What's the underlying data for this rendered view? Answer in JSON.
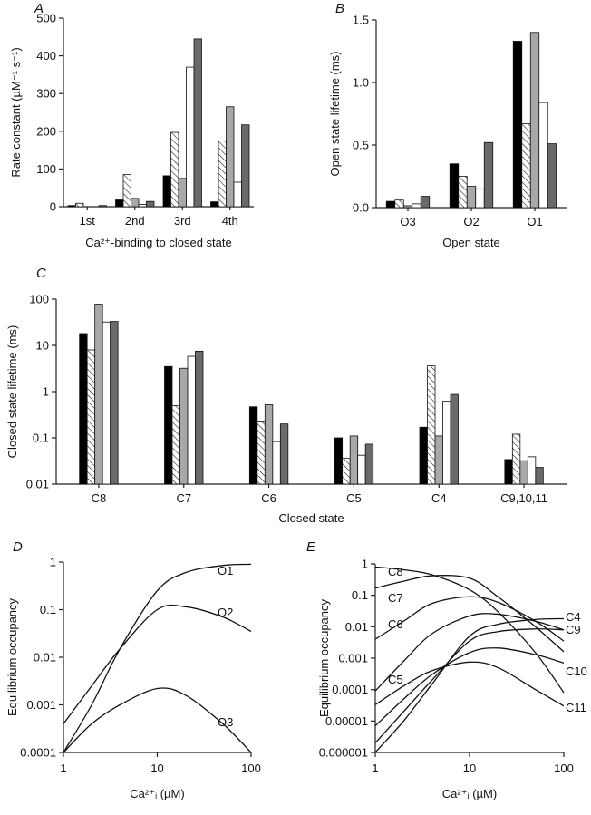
{
  "colors": {
    "series": [
      "#000000",
      "hatch",
      "#a8a8a8",
      "#ffffff",
      "#6a6a6a"
    ],
    "line": "#111111"
  },
  "chart_data": [
    {
      "panel": "A",
      "type": "bar",
      "ylabel": "Rate constant (µM⁻¹ s⁻¹)",
      "xlabel": "Ca²⁺-binding to closed state",
      "categories": [
        "1st",
        "2nd",
        "3rd",
        "4th"
      ],
      "yscale": "linear",
      "ylim": [
        0,
        500
      ],
      "yticks": [
        0,
        100,
        200,
        300,
        400,
        500
      ],
      "ytick_labels": [
        "0",
        "100",
        "200",
        "300",
        "400",
        "500"
      ],
      "series": [
        {
          "name": "series 1 (black)",
          "values": [
            3,
            18,
            82,
            13
          ]
        },
        {
          "name": "series 2 (hatched)",
          "values": [
            9,
            85,
            197,
            174
          ]
        },
        {
          "name": "series 3 (light grey)",
          "values": [
            0,
            22,
            75,
            265
          ]
        },
        {
          "name": "series 4 (white)",
          "values": [
            0,
            6,
            370,
            65
          ]
        },
        {
          "name": "series 5 (dark grey)",
          "values": [
            3,
            14,
            445,
            217
          ]
        }
      ]
    },
    {
      "panel": "B",
      "type": "bar",
      "ylabel": "Open state lifetime (ms)",
      "xlabel": "Open state",
      "categories": [
        "O3",
        "O2",
        "O1"
      ],
      "yscale": "linear",
      "ylim": [
        0,
        1.5
      ],
      "yticks": [
        0,
        0.5,
        1.0,
        1.5
      ],
      "ytick_labels": [
        "0.0",
        "0.5",
        "1.0",
        "1.5"
      ],
      "series": [
        {
          "name": "series 1 (black)",
          "values": [
            0.05,
            0.35,
            1.33
          ]
        },
        {
          "name": "series 2 (hatched)",
          "values": [
            0.06,
            0.25,
            0.67
          ]
        },
        {
          "name": "series 3 (light grey)",
          "values": [
            0.015,
            0.17,
            1.4
          ]
        },
        {
          "name": "series 4 (white)",
          "values": [
            0.03,
            0.15,
            0.84
          ]
        },
        {
          "name": "series 5 (dark grey)",
          "values": [
            0.09,
            0.52,
            0.51
          ]
        }
      ]
    },
    {
      "panel": "C",
      "type": "bar",
      "ylabel": "Closed state lifetime (ms)",
      "xlabel": "Closed state",
      "categories": [
        "C8",
        "C7",
        "C6",
        "C5",
        "C4",
        "C9,10,11"
      ],
      "yscale": "log",
      "ylim": [
        0.01,
        100
      ],
      "yticks": [
        0.01,
        0.1,
        1,
        10,
        100
      ],
      "ytick_labels": [
        "0.01",
        "0.1",
        "1",
        "10",
        "100"
      ],
      "series": [
        {
          "name": "series 1 (black)",
          "values": [
            18,
            3.5,
            0.47,
            0.1,
            0.17,
            0.034
          ]
        },
        {
          "name": "series 2 (hatched)",
          "values": [
            8,
            0.5,
            0.23,
            0.036,
            3.6,
            0.12
          ]
        },
        {
          "name": "series 3 (light grey)",
          "values": [
            78,
            3.2,
            0.52,
            0.11,
            0.11,
            0.032
          ]
        },
        {
          "name": "series 4 (white)",
          "values": [
            32,
            5.8,
            0.083,
            0.042,
            0.62,
            0.039
          ]
        },
        {
          "name": "series 5 (dark grey)",
          "values": [
            33,
            7.5,
            0.2,
            0.073,
            0.87,
            0.023
          ]
        }
      ]
    },
    {
      "panel": "D",
      "type": "line",
      "ylabel": "Equilibrium occupancy",
      "xlabel": "Ca²⁺ᵢ (µM)",
      "xscale": "log",
      "yscale": "log",
      "xlim": [
        1,
        100
      ],
      "ylim": [
        0.0001,
        1
      ],
      "xticks": [
        1,
        10,
        100
      ],
      "xtick_labels": [
        "1",
        "10",
        "100"
      ],
      "yticks": [
        0.0001,
        0.001,
        0.01,
        0.1,
        1
      ],
      "ytick_labels": [
        "0.0001",
        "0.001",
        "0.01",
        "0.1",
        "1"
      ],
      "x": [
        1,
        2,
        4,
        10,
        20,
        50,
        100
      ],
      "series": [
        {
          "name": "O1",
          "values": [
            0.0001,
            0.001,
            0.015,
            0.25,
            0.6,
            0.85,
            0.9
          ]
        },
        {
          "name": "O2",
          "values": [
            0.0004,
            0.0025,
            0.015,
            0.1,
            0.115,
            0.07,
            0.035
          ]
        },
        {
          "name": "O3",
          "values": [
            0.0001,
            0.0004,
            0.001,
            0.0022,
            0.0016,
            0.0004,
            0.0001
          ]
        }
      ]
    },
    {
      "panel": "E",
      "type": "line",
      "ylabel": "Equilibrium occupancy",
      "xlabel": "Ca²⁺ᵢ (µM)",
      "xscale": "log",
      "yscale": "log",
      "xlim": [
        1,
        100
      ],
      "ylim": [
        1e-06,
        1
      ],
      "xticks": [
        1,
        10,
        100
      ],
      "xtick_labels": [
        "1",
        "10",
        "100"
      ],
      "yticks": [
        1e-06,
        1e-05,
        0.0001,
        0.001,
        0.01,
        0.1,
        1
      ],
      "ytick_labels": [
        "0.000001",
        "0.00001",
        "0.0001",
        "0.001",
        "0.01",
        "0.1",
        "1"
      ],
      "x": [
        1,
        2,
        4,
        10,
        20,
        50,
        100
      ],
      "series": [
        {
          "name": "C8",
          "values": [
            0.8,
            0.65,
            0.45,
            0.15,
            0.03,
            0.0015,
            8e-05
          ]
        },
        {
          "name": "C7",
          "values": [
            0.17,
            0.28,
            0.42,
            0.35,
            0.09,
            0.01,
            0.0016
          ]
        },
        {
          "name": "C6",
          "values": [
            0.004,
            0.015,
            0.055,
            0.09,
            0.06,
            0.015,
            0.0035
          ]
        },
        {
          "name": "C5",
          "values": [
            9e-05,
            0.0008,
            0.006,
            0.022,
            0.025,
            0.015,
            0.008
          ]
        },
        {
          "name": "C4",
          "values": [
            1e-06,
            1e-05,
            0.00015,
            0.005,
            0.012,
            0.017,
            0.018
          ]
        },
        {
          "name": "C9",
          "values": [
            2e-06,
            2e-05,
            0.0002,
            0.0035,
            0.007,
            0.0085,
            0.008
          ]
        },
        {
          "name": "C10",
          "values": [
            7e-06,
            5e-05,
            0.0003,
            0.0015,
            0.0021,
            0.0013,
            0.0007
          ]
        },
        {
          "name": "C11",
          "values": [
            3.3e-05,
            0.00013,
            0.0004,
            0.00075,
            0.0005,
            0.0001,
            3e-05
          ]
        }
      ]
    }
  ]
}
